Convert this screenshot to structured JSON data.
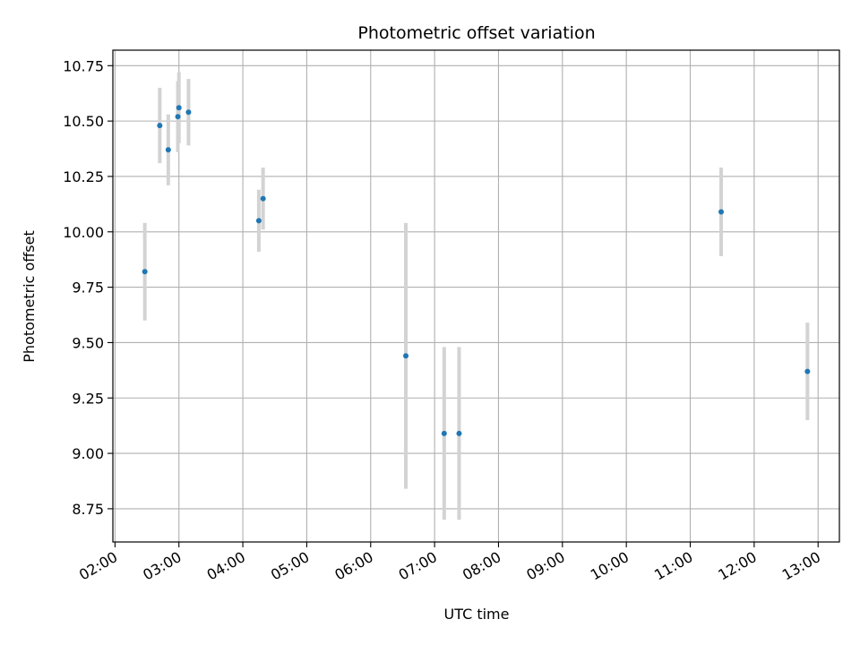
{
  "chart_data": {
    "type": "scatter",
    "title": "Photometric offset variation",
    "xlabel": "UTC time",
    "ylabel": "Photometric offset",
    "x_format": "HH:MM",
    "xlim": [
      "01:58",
      "13:20"
    ],
    "ylim": [
      8.6,
      10.82
    ],
    "x_ticks": [
      "02:00",
      "03:00",
      "04:00",
      "05:00",
      "06:00",
      "07:00",
      "08:00",
      "09:00",
      "10:00",
      "11:00",
      "12:00",
      "13:00"
    ],
    "y_ticks": [
      "8.75",
      "9.00",
      "9.25",
      "9.50",
      "9.75",
      "10.00",
      "10.25",
      "10.50",
      "10.75"
    ],
    "grid": true,
    "point_color": "#1f77b4",
    "errorbar_color": "#d3d3d3",
    "points": [
      {
        "x": "02:28",
        "y": 9.82,
        "err": 0.22
      },
      {
        "x": "02:42",
        "y": 10.48,
        "err": 0.17
      },
      {
        "x": "02:50",
        "y": 10.37,
        "err": 0.16
      },
      {
        "x": "02:59",
        "y": 10.52,
        "err": 0.16
      },
      {
        "x": "03:00",
        "y": 10.56,
        "err": 0.16
      },
      {
        "x": "03:09",
        "y": 10.54,
        "err": 0.15
      },
      {
        "x": "04:15",
        "y": 10.05,
        "err": 0.14
      },
      {
        "x": "04:19",
        "y": 10.15,
        "err": 0.14
      },
      {
        "x": "06:33",
        "y": 9.44,
        "err": 0.6
      },
      {
        "x": "07:09",
        "y": 9.09,
        "err": 0.39
      },
      {
        "x": "07:23",
        "y": 9.09,
        "err": 0.39
      },
      {
        "x": "11:29",
        "y": 10.09,
        "err": 0.2
      },
      {
        "x": "12:50",
        "y": 9.37,
        "err": 0.22
      }
    ]
  }
}
